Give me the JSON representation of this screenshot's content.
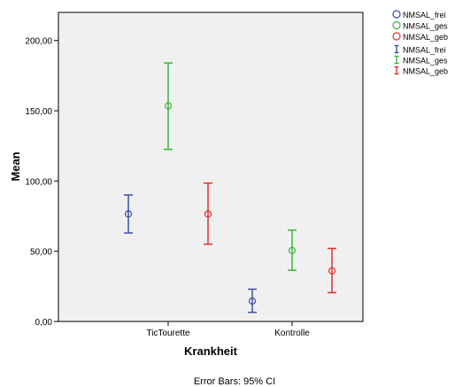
{
  "chart_data": {
    "type": "scatter",
    "xlabel": "Krankheit",
    "ylabel": "Mean",
    "categories": [
      "TicTourette",
      "Kontrolle"
    ],
    "ylim": [
      0,
      220
    ],
    "y_ticks": [
      "0,00",
      "50,00",
      "100,00",
      "150,00",
      "200,00"
    ],
    "y_tick_values": [
      0,
      50,
      100,
      150,
      200
    ],
    "grid": false,
    "legend_position": "right",
    "footnote": "Error Bars: 95% CI",
    "series": [
      {
        "name": "NMSAL_frei",
        "color": "#3b4fa8",
        "means": [
          76.5,
          14.5
        ],
        "lower": [
          63,
          6.5
        ],
        "upper": [
          90,
          23
        ]
      },
      {
        "name": "NMSAL_ges",
        "color": "#3cb43c",
        "means": [
          153.5,
          50.5
        ],
        "lower": [
          122.5,
          36.5
        ],
        "upper": [
          184,
          65
        ]
      },
      {
        "name": "NMSAL_geb",
        "color": "#e03030",
        "means": [
          76.5,
          36
        ],
        "lower": [
          55,
          20.5
        ],
        "upper": [
          98.5,
          52
        ]
      }
    ],
    "legend": {
      "markers": [
        "NMSAL_frei",
        "NMSAL_ges",
        "NMSAL_geb"
      ],
      "errorbars": [
        "NMSAL_frei",
        "NMSAL_ges",
        "NMSAL_geb"
      ]
    }
  }
}
